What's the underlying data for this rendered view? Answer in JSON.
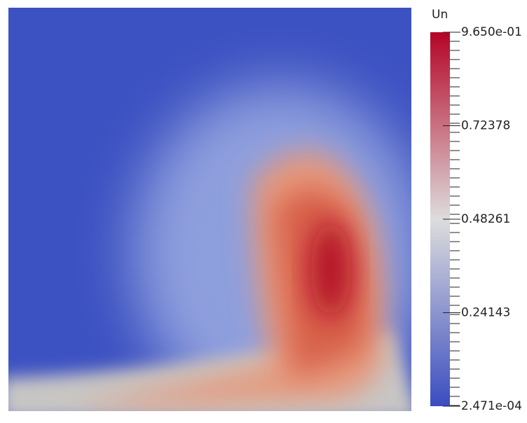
{
  "colorbar": {
    "title": "Un",
    "range": [
      0.0002471,
      0.965
    ],
    "ticks": [
      {
        "value": 0.965,
        "label": "9.650e-01"
      },
      0.72378,
      0.48261,
      0.24143,
      {
        "value": 0.0002471,
        "label": "2.471e-04"
      }
    ],
    "colormap": [
      "#3b4cc0",
      "#dddddd",
      "#b40426"
    ]
  }
}
